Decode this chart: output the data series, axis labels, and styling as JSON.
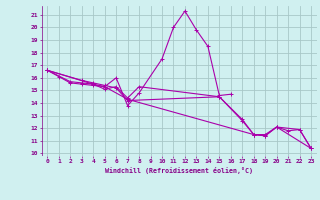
{
  "xlabel": "Windchill (Refroidissement éolien,°C)",
  "background_color": "#d0f0f0",
  "grid_color": "#a8c8c8",
  "line_color": "#aa00aa",
  "xlim": [
    -0.5,
    23.5
  ],
  "ylim": [
    9.8,
    21.7
  ],
  "yticks": [
    10,
    11,
    12,
    13,
    14,
    15,
    16,
    17,
    18,
    19,
    20,
    21
  ],
  "xticks": [
    0,
    1,
    2,
    3,
    4,
    5,
    6,
    7,
    8,
    9,
    10,
    11,
    12,
    13,
    14,
    15,
    16,
    17,
    18,
    19,
    20,
    21,
    22,
    23
  ],
  "series": [
    {
      "x": [
        0,
        1,
        2,
        3,
        4,
        5,
        6,
        7,
        8,
        10,
        11,
        12,
        13,
        14,
        15,
        16
      ],
      "y": [
        16.6,
        16.1,
        15.6,
        15.5,
        15.4,
        15.3,
        16.0,
        13.8,
        14.8,
        17.5,
        20.0,
        21.3,
        19.8,
        18.5,
        14.6,
        14.7
      ]
    },
    {
      "x": [
        0,
        3,
        4,
        5,
        6,
        7,
        15,
        17,
        18,
        19,
        20,
        21,
        22,
        23
      ],
      "y": [
        16.6,
        15.8,
        15.6,
        15.4,
        15.2,
        14.2,
        14.5,
        12.7,
        11.5,
        11.5,
        12.1,
        11.8,
        11.9,
        10.4
      ]
    },
    {
      "x": [
        0,
        4,
        5,
        7,
        18,
        19,
        20,
        23
      ],
      "y": [
        16.6,
        15.5,
        15.3,
        14.3,
        11.5,
        11.4,
        12.1,
        10.4
      ]
    },
    {
      "x": [
        0,
        2,
        3,
        4,
        5,
        6,
        7,
        8,
        15,
        17,
        18,
        19,
        20,
        22,
        23
      ],
      "y": [
        16.6,
        15.7,
        15.6,
        15.5,
        15.1,
        15.3,
        14.4,
        15.3,
        14.5,
        12.6,
        11.5,
        11.4,
        12.1,
        11.9,
        10.4
      ]
    }
  ]
}
